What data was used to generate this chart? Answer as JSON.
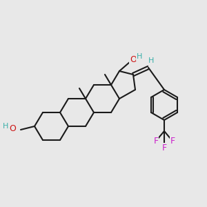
{
  "bg": "#e8e8e8",
  "bc": "#1a1a1a",
  "teal": "#3aafa9",
  "red": "#cc1111",
  "mag": "#cc22cc",
  "bw": 1.5,
  "figsize": [
    3.0,
    3.0
  ],
  "dpi": 100,
  "OH_label": "OH",
  "H_label": "H",
  "O_label": "O",
  "HO_label": "HO",
  "F_label": "F",
  "Me_stub": true
}
